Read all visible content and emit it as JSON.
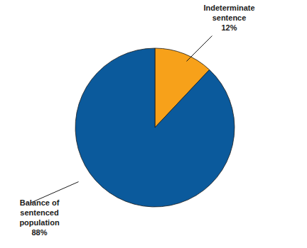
{
  "chart_data": {
    "type": "pie",
    "categories": [
      "Indeterminate sentence",
      "Balance of sentenced population"
    ],
    "values": [
      12,
      88
    ],
    "value_labels": [
      "12%",
      "88%"
    ],
    "colors": [
      "#f7a11a",
      "#0b5a9c"
    ],
    "data_labels": true
  }
}
